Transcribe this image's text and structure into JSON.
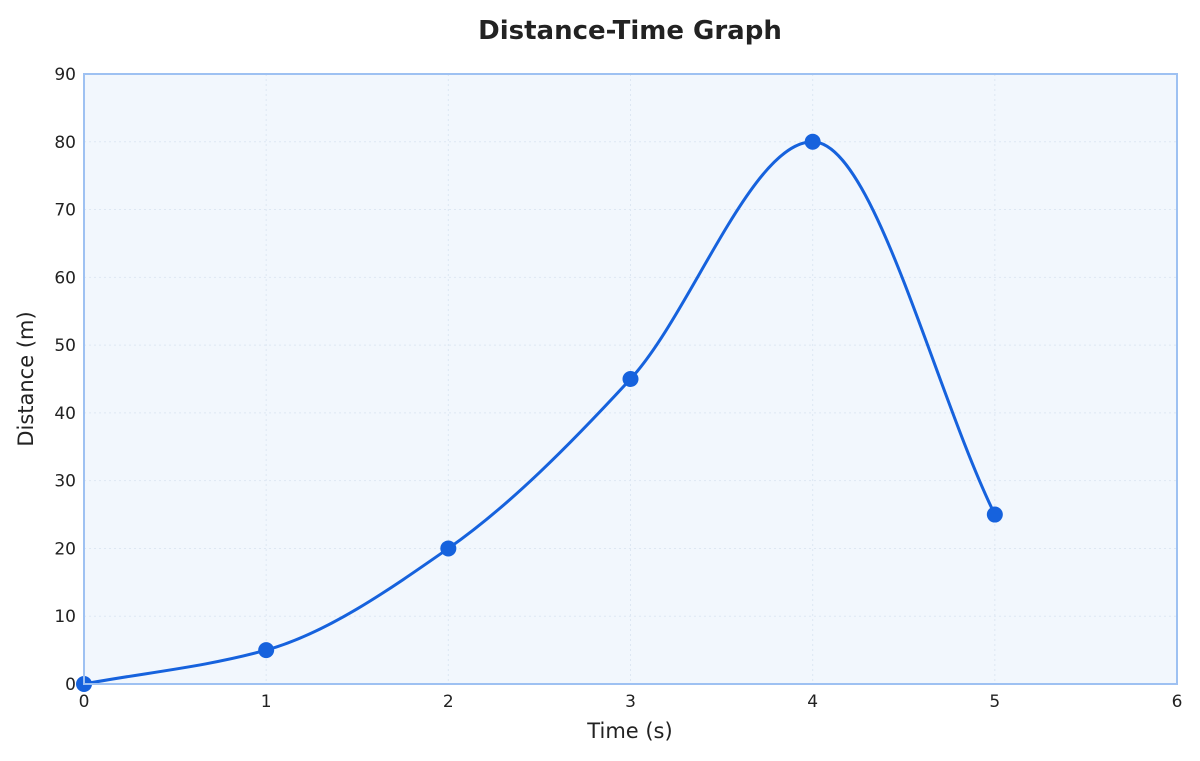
{
  "chart_data": {
    "type": "line",
    "title": "Distance-Time Graph",
    "xlabel": "Time (s)",
    "ylabel": "Distance (m)",
    "xlim": [
      0,
      6
    ],
    "ylim": [
      0,
      90
    ],
    "x_ticks": [
      0,
      1,
      2,
      3,
      4,
      5,
      6
    ],
    "y_ticks": [
      0,
      10,
      20,
      30,
      40,
      50,
      60,
      70,
      80,
      90
    ],
    "grid": true,
    "smooth": true,
    "series": [
      {
        "x": [
          0,
          1,
          2,
          3,
          4,
          5
        ],
        "y": [
          0,
          5,
          20,
          45,
          80,
          25
        ]
      }
    ],
    "colors": {
      "line": "#1662dd",
      "marker": "#1662dd",
      "plot_background": "#f2f7fd",
      "plot_border": "#9ec1f2",
      "grid": "#dde7f3"
    }
  }
}
